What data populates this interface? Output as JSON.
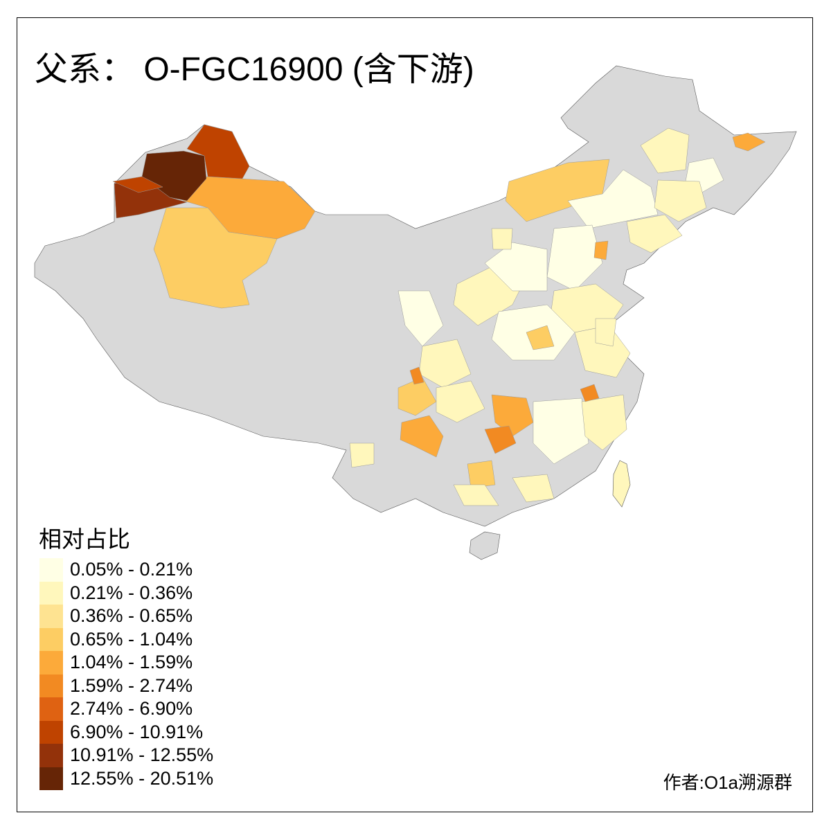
{
  "title": "父系： O-FGC16900 (含下游)",
  "legend": {
    "title": "相对占比",
    "classes": [
      {
        "label": "0.05% - 0.21%",
        "color": "#FFFFE5"
      },
      {
        "label": "0.21% - 0.36%",
        "color": "#FFF7BC"
      },
      {
        "label": "0.36% - 0.65%",
        "color": "#FEE391"
      },
      {
        "label": "0.65% - 1.04%",
        "color": "#FDCD63"
      },
      {
        "label": "1.04% - 1.59%",
        "color": "#FCAA3A"
      },
      {
        "label": "1.59% - 2.74%",
        "color": "#F28A22"
      },
      {
        "label": "2.74% - 6.90%",
        "color": "#DF6212"
      },
      {
        "label": "6.90% - 10.91%",
        "color": "#BF4300"
      },
      {
        "label": "10.91% - 12.55%",
        "color": "#93320A"
      },
      {
        "label": "12.55% - 20.51%",
        "color": "#662506"
      }
    ],
    "no_data_color": "#D9D9D9"
  },
  "credit": "作者:O1a溯源群"
}
